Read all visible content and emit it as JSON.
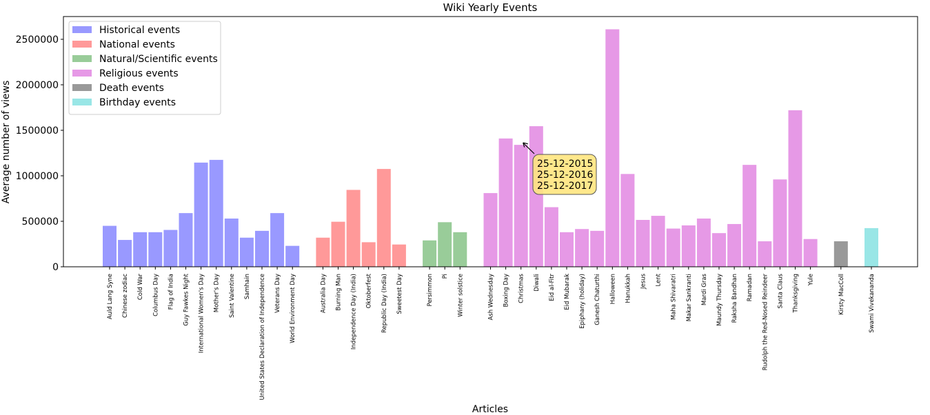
{
  "chart_data": {
    "type": "bar",
    "title": "Wiki Yearly Events",
    "xlabel": "Articles",
    "ylabel": "Average number of views",
    "ylim": [
      0,
      2750000
    ],
    "yticks": [
      0,
      500000,
      1000000,
      1500000,
      2000000,
      2500000
    ],
    "grid": false,
    "legend_position": "top-left",
    "series": [
      {
        "name": "Historical events",
        "color": "#9999ff",
        "categories": [
          "Auld Lang Syne",
          "Chinese zodiac",
          "Cold War",
          "Columbus Day",
          "Flag of India",
          "Guy Fawkes Night",
          "International Women's Day",
          "Mother's Day",
          "Saint Valentine",
          "Samhain",
          "United States Declaration of Independence",
          "Veterans Day",
          "World Environment Day"
        ],
        "values": [
          450000,
          295000,
          380000,
          380000,
          405000,
          590000,
          1145000,
          1175000,
          530000,
          320000,
          395000,
          590000,
          230000
        ]
      },
      {
        "name": "National events",
        "color": "#ff9999",
        "categories": [
          "Australia Day",
          "Burning Man",
          "Independence Day (India)",
          "Oktoberfest",
          "Republic Day (India)",
          "Sweetest Day"
        ],
        "values": [
          320000,
          495000,
          845000,
          270000,
          1075000,
          245000
        ]
      },
      {
        "name": "Natural/Scientific events",
        "color": "#99cc99",
        "categories": [
          "Persimmon",
          "Pi",
          "Winter solstice"
        ],
        "values": [
          290000,
          490000,
          380000
        ]
      },
      {
        "name": "Religious events",
        "color": "#e699e6",
        "categories": [
          "Ash Wednesday",
          "Boxing Day",
          "Christmas",
          "Diwali",
          "Eid al-Fitr",
          "Eid Mubarak",
          "Epiphany (holiday)",
          "Ganesh Chaturthi",
          "Halloween",
          "Hanukkah",
          "Jesus",
          "Lent",
          "Maha Shivaratri",
          "Makar Sankranti",
          "Mardi Gras",
          "Maundy Thursday",
          "Raksha Bandhan",
          "Ramadan",
          "Rudolph the Red-Nosed Reindeer",
          "Santa Claus",
          "Thanksgiving",
          "Yule"
        ],
        "values": [
          810000,
          1410000,
          1340000,
          1545000,
          655000,
          380000,
          415000,
          395000,
          2610000,
          1020000,
          515000,
          560000,
          420000,
          455000,
          530000,
          370000,
          470000,
          1120000,
          280000,
          960000,
          1720000,
          305000
        ]
      },
      {
        "name": "Death events",
        "color": "#999999",
        "categories": [
          "Kirsty MacColl"
        ],
        "values": [
          280000
        ]
      },
      {
        "name": "Birthday events",
        "color": "#99e6e6",
        "categories": [
          "Swami Vivekananda"
        ],
        "values": [
          425000
        ]
      }
    ],
    "annotation": {
      "target_category": "Christmas",
      "lines": [
        "25-12-2015",
        "25-12-2016",
        "25-12-2017"
      ],
      "box_color": "#ffe680"
    }
  }
}
